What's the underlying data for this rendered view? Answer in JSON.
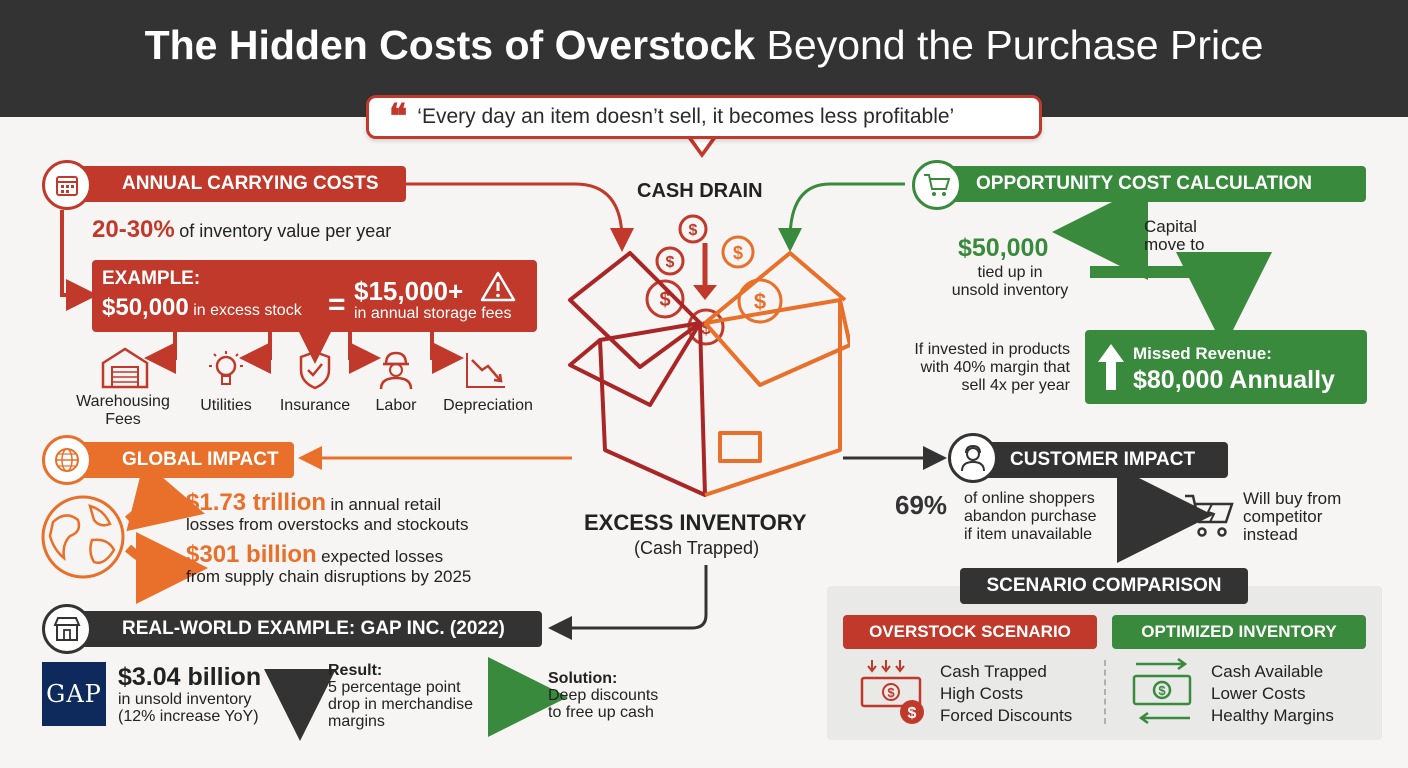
{
  "title": {
    "bold": "The Hidden Costs of Overstock",
    "light": "Beyond the Purchase Price"
  },
  "quote": "‘Every day an item doesn’t sell, it becomes less profitable’",
  "center": {
    "top_label": "CASH DRAIN",
    "bottom_title": "EXCESS INVENTORY",
    "bottom_sub": "(Cash Trapped)"
  },
  "carrying": {
    "header": "ANNUAL CARRYING COSTS",
    "rate_value": "20-30%",
    "rate_text": "of inventory value per year",
    "example_label": "EXAMPLE:",
    "example_amount": "$50,000",
    "example_desc": "in excess stock",
    "equals": "=",
    "example_result": "$15,000+",
    "example_result_desc": "in annual storage fees",
    "items": [
      {
        "label": "Warehousing Fees",
        "icon": "warehouse-icon"
      },
      {
        "label": "Utilities",
        "icon": "lightbulb-icon"
      },
      {
        "label": "Insurance",
        "icon": "shield-icon"
      },
      {
        "label": "Labor",
        "icon": "worker-icon"
      },
      {
        "label": "Depreciation",
        "icon": "declining-chart-icon"
      }
    ]
  },
  "global": {
    "header": "GLOBAL IMPACT",
    "stat1_value": "$1.73 trillion",
    "stat1_text": "in annual retail",
    "stat1_text2": "losses from overstocks and stockouts",
    "stat2_value": "$301 billion",
    "stat2_text": "expected losses",
    "stat2_text2": "from supply chain disruptions by 2025"
  },
  "gap": {
    "header": "REAL-WORLD EXAMPLE: GAP INC. (2022)",
    "logo": "GAP",
    "amount": "$3.04 billion",
    "amount_l1": "in unsold inventory",
    "amount_l2": "(12% increase YoY)",
    "result_label": "Result:",
    "result_l1": "5 percentage point",
    "result_l2": "drop in merchandise",
    "result_l3": "margins",
    "solution_label": "Solution:",
    "solution_l1": "Deep discounts",
    "solution_l2": "to free up cash"
  },
  "opportunity": {
    "header": "OPPORTUNITY COST CALCULATION",
    "amount": "$50,000",
    "amount_l1": "tied up in",
    "amount_l2": "unsold inventory",
    "capital_l1": "Capital",
    "capital_l2": "move to",
    "invest_l1": "If invested in products",
    "invest_l2": "with 40% margin that",
    "invest_l3": "sell 4x per year",
    "missed_label": "Missed Revenue:",
    "missed_value": "$80,000 Annually"
  },
  "customer": {
    "header": "CUSTOMER IMPACT",
    "pct": "69%",
    "pct_l1": "of online shoppers",
    "pct_l2": "abandon purchase",
    "pct_l3": "if item unavailable",
    "result_l1": "Will buy from",
    "result_l2": "competitor",
    "result_l3": "instead"
  },
  "scenario": {
    "header": "SCENARIO COMPARISON",
    "overstock_label": "OVERSTOCK SCENARIO",
    "overstock_items": [
      "Cash Trapped",
      "High Costs",
      "Forced Discounts"
    ],
    "optimized_label": "OPTIMIZED INVENTORY",
    "optimized_items": [
      "Cash Available",
      "Lower Costs",
      "Healthy Margins"
    ]
  },
  "colors": {
    "red": "#c0392b",
    "orange": "#e8702a",
    "green": "#3a8a3e",
    "dark": "#333333"
  }
}
